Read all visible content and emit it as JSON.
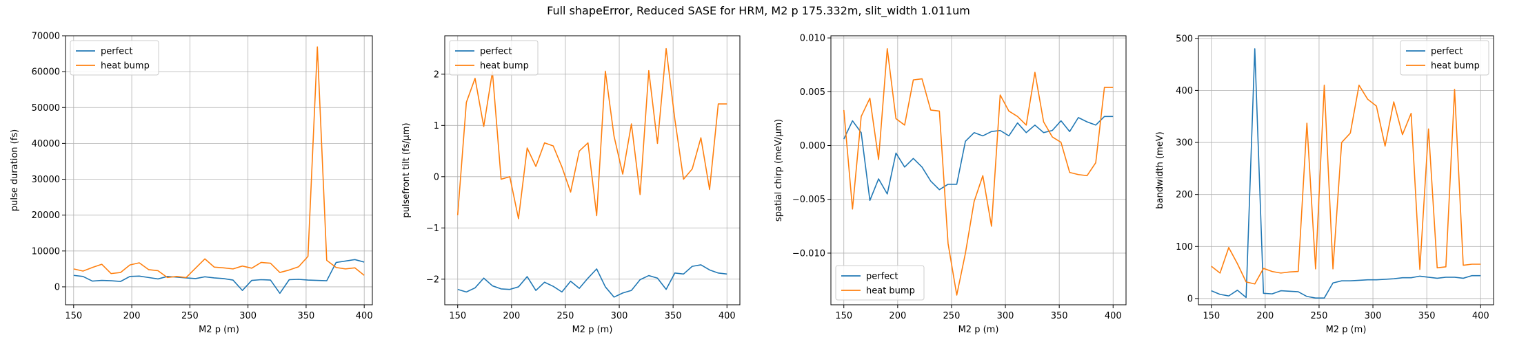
{
  "figure": {
    "suptitle": "Full shapeError, Reduced SASE for HRM, M2 p 175.332m, slit_width 1.011um"
  },
  "colors": {
    "perfect": "#1f77b4",
    "heat_bump": "#ff7f0e",
    "grid": "#b0b0b0"
  },
  "chart_data": [
    {
      "type": "line",
      "xlabel": "M2 p (m)",
      "ylabel": "pulse duration (fs)",
      "xlim": [
        143,
        407
      ],
      "ylim": [
        -5000,
        70000
      ],
      "xticks": [
        150,
        200,
        250,
        300,
        350,
        400
      ],
      "yticks": [
        0,
        10000,
        20000,
        30000,
        40000,
        50000,
        60000,
        70000
      ],
      "ytick_labels": [
        "0",
        "10000",
        "20000",
        "30000",
        "40000",
        "50000",
        "60000",
        "70000"
      ],
      "grid": true,
      "legend_position": "top-left",
      "x": [
        150,
        158.06,
        166.13,
        174.19,
        182.26,
        190.32,
        198.39,
        206.45,
        214.52,
        222.58,
        230.65,
        238.71,
        246.77,
        254.84,
        262.9,
        270.97,
        279.03,
        287.1,
        295.16,
        303.23,
        311.29,
        319.35,
        327.42,
        335.48,
        343.55,
        351.61,
        359.68,
        367.74,
        375.81,
        383.87,
        391.94,
        400
      ],
      "series": [
        {
          "name": "perfect",
          "values": [
            3200,
            2900,
            1600,
            1800,
            1700,
            1500,
            2900,
            3000,
            2600,
            2200,
            2900,
            2700,
            2500,
            2300,
            2800,
            2500,
            2300,
            1900,
            -1000,
            1800,
            2000,
            1900,
            -1800,
            2000,
            2100,
            1900,
            1800,
            1700,
            6800,
            7200,
            7600,
            6900
          ]
        },
        {
          "name": "heat bump",
          "values": [
            5000,
            4400,
            5400,
            6300,
            3700,
            4000,
            6100,
            6700,
            4800,
            4500,
            2600,
            2900,
            2600,
            5200,
            7800,
            5500,
            5300,
            5000,
            5800,
            5200,
            6800,
            6600,
            4000,
            4700,
            5600,
            8500,
            66900,
            7400,
            5400,
            5000,
            5300,
            3200
          ]
        }
      ]
    },
    {
      "type": "line",
      "xlabel": "M2 p (m)",
      "ylabel": "pulsefront tilt (fs/μm)",
      "xlim": [
        138,
        412
      ],
      "ylim": [
        -2.5,
        2.75
      ],
      "xticks": [
        150,
        200,
        250,
        300,
        350,
        400
      ],
      "yticks": [
        -2,
        -1,
        0,
        1,
        2
      ],
      "ytick_labels": [
        "−2",
        "−1",
        "0",
        "1",
        "2"
      ],
      "grid": true,
      "legend_position": "top-left",
      "x": [
        150,
        158.06,
        166.13,
        174.19,
        182.26,
        190.32,
        198.39,
        206.45,
        214.52,
        222.58,
        230.65,
        238.71,
        246.77,
        254.84,
        262.9,
        270.97,
        279.03,
        287.1,
        295.16,
        303.23,
        311.29,
        319.35,
        327.42,
        335.48,
        343.55,
        351.61,
        359.68,
        367.74,
        375.81,
        383.87,
        391.94,
        400
      ],
      "series": [
        {
          "name": "perfect",
          "values": [
            -2.2,
            -2.25,
            -2.17,
            -1.98,
            -2.13,
            -2.19,
            -2.2,
            -2.15,
            -1.95,
            -2.22,
            -2.06,
            -2.14,
            -2.25,
            -2.04,
            -2.18,
            -1.98,
            -1.8,
            -2.15,
            -2.35,
            -2.27,
            -2.22,
            -2.01,
            -1.93,
            -1.98,
            -2.2,
            -1.88,
            -1.9,
            -1.75,
            -1.72,
            -1.82,
            -1.88,
            -1.9
          ],
          "_note_last": ""
        },
        {
          "name": "heat bump",
          "values": [
            -0.75,
            1.45,
            1.92,
            0.98,
            2.05,
            -0.05,
            0.0,
            -0.82,
            0.56,
            0.2,
            0.66,
            0.6,
            0.19,
            -0.3,
            0.5,
            0.66,
            -0.76,
            2.06,
            0.79,
            0.05,
            1.03,
            -0.35,
            2.07,
            0.65,
            2.5,
            1.12,
            -0.05,
            0.15,
            0.76,
            -0.25,
            1.42,
            1.42
          ]
        }
      ]
    },
    {
      "type": "line",
      "xlabel": "M2 p (m)",
      "ylabel": "spatial chirp (meV/μm)",
      "xlim": [
        138,
        412
      ],
      "ylim": [
        -0.0148,
        0.0102
      ],
      "xticks": [
        150,
        200,
        250,
        300,
        350,
        400
      ],
      "yticks": [
        -0.01,
        -0.005,
        0.0,
        0.005,
        0.01
      ],
      "ytick_labels": [
        "−0.010",
        "−0.005",
        "0.000",
        "0.005",
        "0.010"
      ],
      "grid": true,
      "legend_position": "bottom-left",
      "x": [
        150,
        158.06,
        166.13,
        174.19,
        182.26,
        190.32,
        198.39,
        206.45,
        214.52,
        222.58,
        230.65,
        238.71,
        246.77,
        254.84,
        262.9,
        270.97,
        279.03,
        287.1,
        295.16,
        303.23,
        311.29,
        319.35,
        327.42,
        335.48,
        343.55,
        351.61,
        359.68,
        367.74,
        375.81,
        383.87,
        391.94,
        400
      ],
      "series": [
        {
          "name": "perfect",
          "values": [
            0.0006,
            0.0023,
            0.0012,
            -0.0051,
            -0.0031,
            -0.0045,
            -0.0007,
            -0.002,
            -0.0012,
            -0.002,
            -0.0033,
            -0.0041,
            -0.0036,
            -0.0036,
            0.0004,
            0.0012,
            0.0009,
            0.0013,
            0.0014,
            0.0009,
            0.0021,
            0.0012,
            0.0019,
            0.0012,
            0.0014,
            0.0023,
            0.0013,
            0.0026,
            0.0022,
            0.0019,
            0.0027,
            0.0027
          ]
        },
        {
          "name": "heat bump",
          "values": [
            0.0033,
            -0.0059,
            0.0027,
            0.0044,
            -0.0013,
            0.009,
            0.0025,
            0.0019,
            0.0061,
            0.0062,
            0.0033,
            0.0032,
            -0.0091,
            -0.0139,
            -0.01,
            -0.0052,
            -0.0028,
            -0.0075,
            0.0047,
            0.0032,
            0.0027,
            0.0019,
            0.0068,
            0.0022,
            0.0008,
            0.0003,
            -0.0025,
            -0.0027,
            -0.0028,
            -0.0016,
            0.0054,
            0.0054
          ]
        }
      ]
    },
    {
      "type": "line",
      "xlabel": "M2 p (m)",
      "ylabel": "bandwidth (meV)",
      "xlim": [
        138,
        412
      ],
      "ylim": [
        -12,
        505
      ],
      "xticks": [
        150,
        200,
        250,
        300,
        350,
        400
      ],
      "yticks": [
        0,
        100,
        200,
        300,
        400,
        500
      ],
      "ytick_labels": [
        "0",
        "100",
        "200",
        "300",
        "400",
        "500"
      ],
      "grid": true,
      "legend_position": "top-right",
      "x": [
        150,
        158.06,
        166.13,
        174.19,
        182.26,
        190.32,
        198.39,
        206.45,
        214.52,
        222.58,
        230.65,
        238.71,
        246.77,
        254.84,
        262.9,
        270.97,
        279.03,
        287.1,
        295.16,
        303.23,
        311.29,
        319.35,
        327.42,
        335.48,
        343.55,
        351.61,
        359.68,
        367.74,
        375.81,
        383.87,
        391.94,
        400
      ],
      "series": [
        {
          "name": "perfect",
          "values": [
            15,
            8,
            5,
            16,
            2,
            480,
            10,
            9,
            15,
            14,
            13,
            4,
            1,
            1,
            30,
            34,
            34,
            35,
            36,
            36,
            37,
            38,
            40,
            40,
            43,
            41,
            39,
            41,
            41,
            39,
            44,
            44
          ]
        },
        {
          "name": "heat bump",
          "values": [
            62,
            49,
            98,
            67,
            32,
            28,
            58,
            52,
            49,
            51,
            52,
            337,
            57,
            410,
            57,
            300,
            318,
            410,
            383,
            370,
            293,
            378,
            315,
            356,
            56,
            326,
            59,
            61,
            402,
            64,
            66,
            66
          ]
        }
      ]
    }
  ]
}
